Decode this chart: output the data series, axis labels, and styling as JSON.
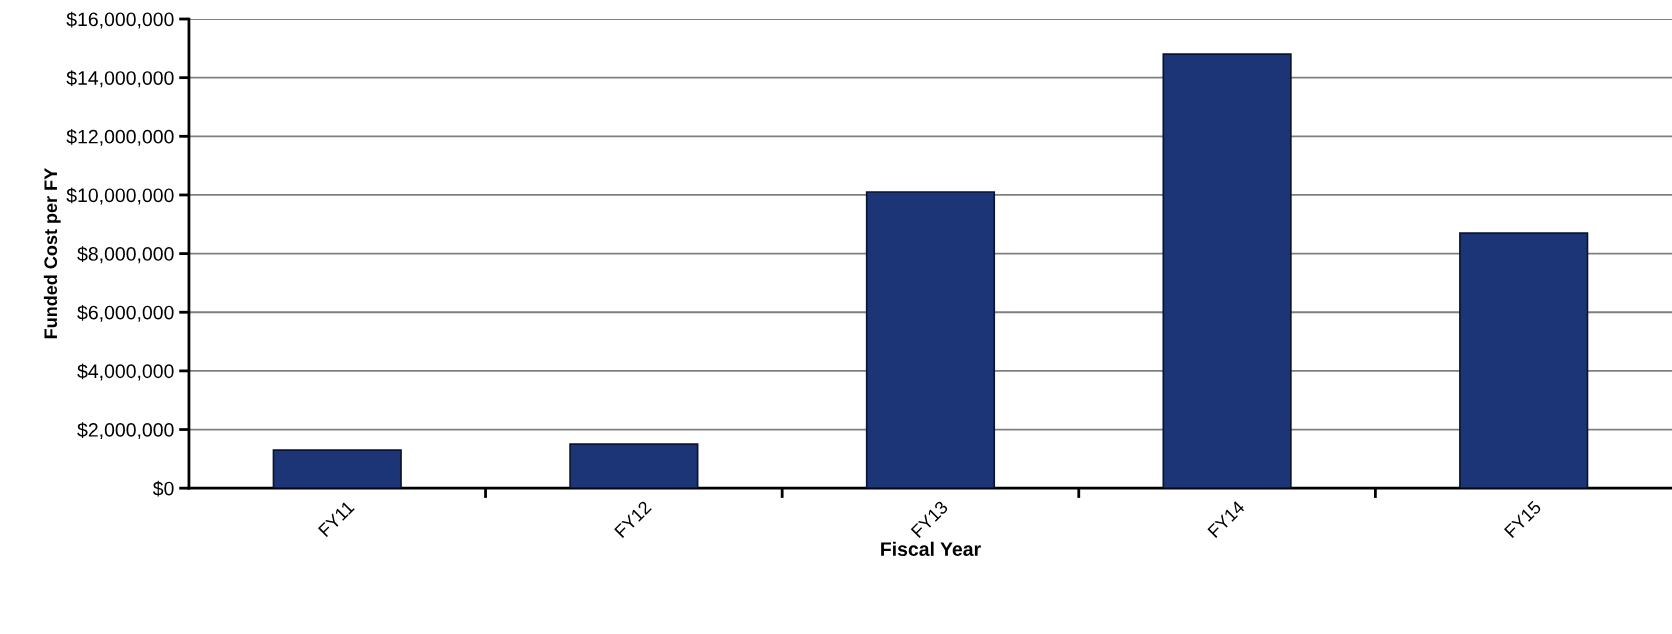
{
  "chart_data": {
    "type": "bar",
    "xlabel": "Fiscal Year",
    "ylabel": "Funded Cost per FY",
    "categories": [
      "FY11",
      "FY12",
      "FY13",
      "FY14",
      "FY15"
    ],
    "values": [
      1300000,
      1500000,
      10100000,
      14800000,
      8700000
    ],
    "color": "#1c3577",
    "ylim": [
      0,
      16000000
    ],
    "yticks": [
      {
        "value": 0,
        "label": "$0"
      },
      {
        "value": 2000000,
        "label": "$2,000,000"
      },
      {
        "value": 4000000,
        "label": "$4,000,000"
      },
      {
        "value": 6000000,
        "label": "$6,000,000"
      },
      {
        "value": 8000000,
        "label": "$8,000,000"
      },
      {
        "value": 10000000,
        "label": "$10,000,000"
      },
      {
        "value": 12000000,
        "label": "$12,000,000"
      },
      {
        "value": 14000000,
        "label": "$14,000,000"
      },
      {
        "value": 16000000,
        "label": "$16,000,000"
      }
    ],
    "grid": "y"
  }
}
